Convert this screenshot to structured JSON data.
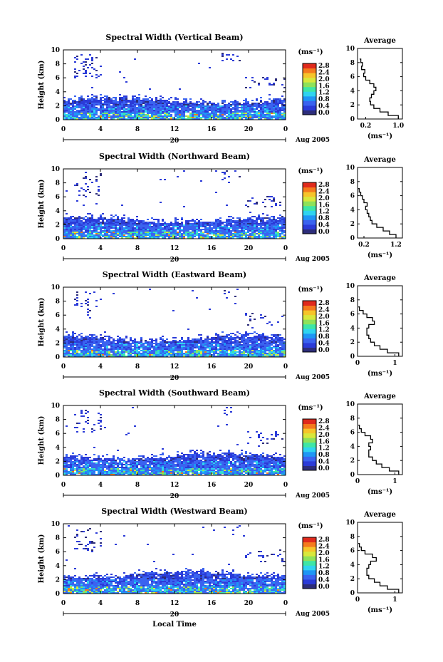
{
  "colorbar": {
    "unit": "(ms⁻¹)",
    "ticks": [
      "2.8",
      "2.4",
      "2.0",
      "1.6",
      "1.2",
      "0.8",
      "0.4",
      "0.0"
    ],
    "colors": [
      "#2d2d7a",
      "#2b3bd8",
      "#3a63f0",
      "#1f96f5",
      "#2fd4f0",
      "#3ee6a6",
      "#8ee25a",
      "#d8e83c",
      "#f6c52a",
      "#f57a1d",
      "#e02a1c"
    ]
  },
  "common": {
    "ylabel": "Height (km)",
    "y_ticks": [
      "0",
      "2",
      "4",
      "6",
      "8",
      "10"
    ],
    "x_ticks": [
      "0",
      "4",
      "8",
      "12",
      "16",
      "20",
      "0"
    ],
    "day_label": "20",
    "month_label": "Aug 2005",
    "xlabel": "Local Time",
    "avg_ylabel_ticks": [
      "0",
      "2",
      "4",
      "6",
      "8",
      "10"
    ],
    "avg_unit": "(ms⁻¹)"
  },
  "chart_data": [
    {
      "type": "heatmap",
      "title": "Spectral Width (Vertical Beam)",
      "ylabel": "Height (km)",
      "ylim": [
        0,
        10
      ],
      "xlim": [
        0,
        24
      ],
      "profile": {
        "title": "Average",
        "xticks": [
          "0.2",
          "1.0"
        ],
        "xlim": [
          0,
          1.1
        ],
        "heights": [
          0,
          0.5,
          1,
          1.5,
          2,
          2.5,
          3,
          3.5,
          4,
          4.5,
          5,
          5.5,
          6,
          6.5,
          7,
          7.5,
          8,
          8.5
        ],
        "values": [
          1.0,
          0.75,
          0.55,
          0.4,
          0.32,
          0.3,
          0.34,
          0.4,
          0.45,
          0.4,
          0.3,
          0.2,
          0.15,
          0.18,
          0.1,
          0.12,
          0.08,
          0.05
        ]
      }
    },
    {
      "type": "heatmap",
      "title": "Spectral Width (Northward Beam)",
      "ylabel": "Height (km)",
      "ylim": [
        0,
        10
      ],
      "xlim": [
        0,
        24
      ],
      "profile": {
        "title": "Average",
        "xticks": [
          "0.2",
          "1.2"
        ],
        "xlim": [
          0,
          1.4
        ],
        "heights": [
          0,
          0.5,
          1,
          1.5,
          2,
          2.5,
          3,
          3.5,
          4,
          4.5,
          5,
          5.5,
          6,
          6.5,
          7
        ],
        "values": [
          1.2,
          1.0,
          0.8,
          0.6,
          0.45,
          0.4,
          0.35,
          0.3,
          0.25,
          0.3,
          0.2,
          0.15,
          0.1,
          0.05,
          0.02
        ]
      }
    },
    {
      "type": "heatmap",
      "title": "Spectral Width (Eastward Beam)",
      "ylabel": "Height (km)",
      "ylim": [
        0,
        10
      ],
      "xlim": [
        0,
        24
      ],
      "profile": {
        "title": "Average",
        "xticks": [
          "0",
          "1"
        ],
        "xlim": [
          0,
          1.2
        ],
        "heights": [
          0,
          0.5,
          1,
          1.5,
          2,
          2.5,
          3,
          3.5,
          4,
          4.5,
          5,
          5.5,
          6,
          6.5,
          7
        ],
        "values": [
          1.1,
          0.8,
          0.6,
          0.45,
          0.35,
          0.3,
          0.25,
          0.25,
          0.3,
          0.45,
          0.4,
          0.25,
          0.15,
          0.05,
          0.02
        ]
      }
    },
    {
      "type": "heatmap",
      "title": "Spectral Width (Southward Beam)",
      "ylabel": "Height (km)",
      "ylim": [
        0,
        10
      ],
      "xlim": [
        0,
        24
      ],
      "profile": {
        "title": "Average",
        "xticks": [
          "0",
          "1"
        ],
        "xlim": [
          0,
          1.2
        ],
        "heights": [
          0,
          0.5,
          1,
          1.5,
          2,
          2.5,
          3,
          3.5,
          4,
          4.5,
          5,
          5.5,
          6,
          6.5,
          7
        ],
        "values": [
          1.1,
          0.85,
          0.65,
          0.5,
          0.4,
          0.3,
          0.3,
          0.35,
          0.3,
          0.4,
          0.35,
          0.2,
          0.1,
          0.05,
          0.02
        ]
      }
    },
    {
      "type": "heatmap",
      "title": "Spectral Width (Westward Beam)",
      "ylabel": "Height (km)",
      "ylim": [
        0,
        10
      ],
      "xlim": [
        0,
        24
      ],
      "profile": {
        "title": "Average",
        "xticks": [
          "0",
          "1"
        ],
        "xlim": [
          0,
          1.2
        ],
        "heights": [
          0,
          0.5,
          1,
          1.5,
          2,
          2.5,
          3,
          3.5,
          4,
          4.5,
          5,
          5.5,
          6,
          6.5,
          7
        ],
        "values": [
          1.1,
          0.8,
          0.6,
          0.45,
          0.3,
          0.25,
          0.25,
          0.3,
          0.35,
          0.5,
          0.4,
          0.2,
          0.1,
          0.05,
          0.02
        ]
      }
    }
  ]
}
